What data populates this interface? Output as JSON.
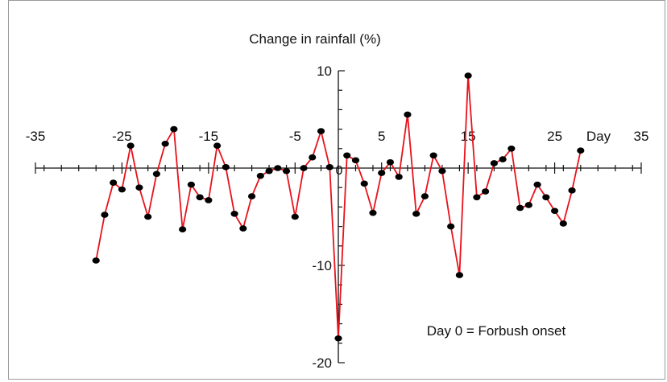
{
  "chart_data": {
    "type": "line",
    "title": "",
    "ylabel": "Change in rainfall (%)",
    "xlabel": "Day",
    "annotation": "Day 0 = Forbush onset",
    "xlim": [
      -35,
      35
    ],
    "ylim": [
      -20,
      10
    ],
    "x_ticks": [
      -35,
      -25,
      -15,
      -5,
      5,
      15,
      25,
      35
    ],
    "y_ticks": [
      10,
      -10,
      -20
    ],
    "x_tick_labels": [
      "-35",
      "-25",
      "-15",
      "-5",
      "5",
      "15",
      "25",
      "35"
    ],
    "y_tick_labels": [
      "10",
      "-10",
      "-20"
    ],
    "origin_label": "0",
    "colors": {
      "line": "#e8121b",
      "marker": "#000000"
    },
    "series": [
      {
        "x": [
          -28,
          -27,
          -26,
          -25,
          -24,
          -23,
          -22,
          -21,
          -20,
          -19,
          -18,
          -17,
          -16,
          -15,
          -14,
          -13,
          -12,
          -11,
          -10,
          -9,
          -8,
          -7,
          -6,
          -5,
          -4,
          -3,
          -2,
          -1,
          0,
          1,
          2,
          3,
          4,
          5,
          6,
          7,
          8,
          9,
          10,
          11,
          12,
          13,
          14,
          15,
          16,
          17,
          18,
          19,
          20,
          21,
          22,
          23,
          24,
          25,
          26,
          27,
          28
        ],
        "y": [
          -9.5,
          -4.8,
          -1.5,
          -2.2,
          2.3,
          -2.0,
          -5.0,
          -0.6,
          2.5,
          4.0,
          -6.3,
          -1.7,
          -3.0,
          -3.3,
          2.3,
          0.1,
          -4.7,
          -6.2,
          -2.9,
          -0.8,
          -0.3,
          0.0,
          -0.3,
          -5.0,
          0.0,
          1.1,
          3.8,
          0.1,
          -17.5,
          1.3,
          0.8,
          -1.6,
          -4.6,
          -0.5,
          0.6,
          -0.9,
          5.5,
          -4.7,
          -2.9,
          1.3,
          -0.3,
          -6.0,
          -11.0,
          9.5,
          -3.0,
          -2.4,
          0.5,
          0.9,
          2.0,
          -4.1,
          -3.8,
          -1.7,
          -3.0,
          -4.4,
          -5.7,
          -2.3,
          1.8
        ]
      }
    ]
  }
}
